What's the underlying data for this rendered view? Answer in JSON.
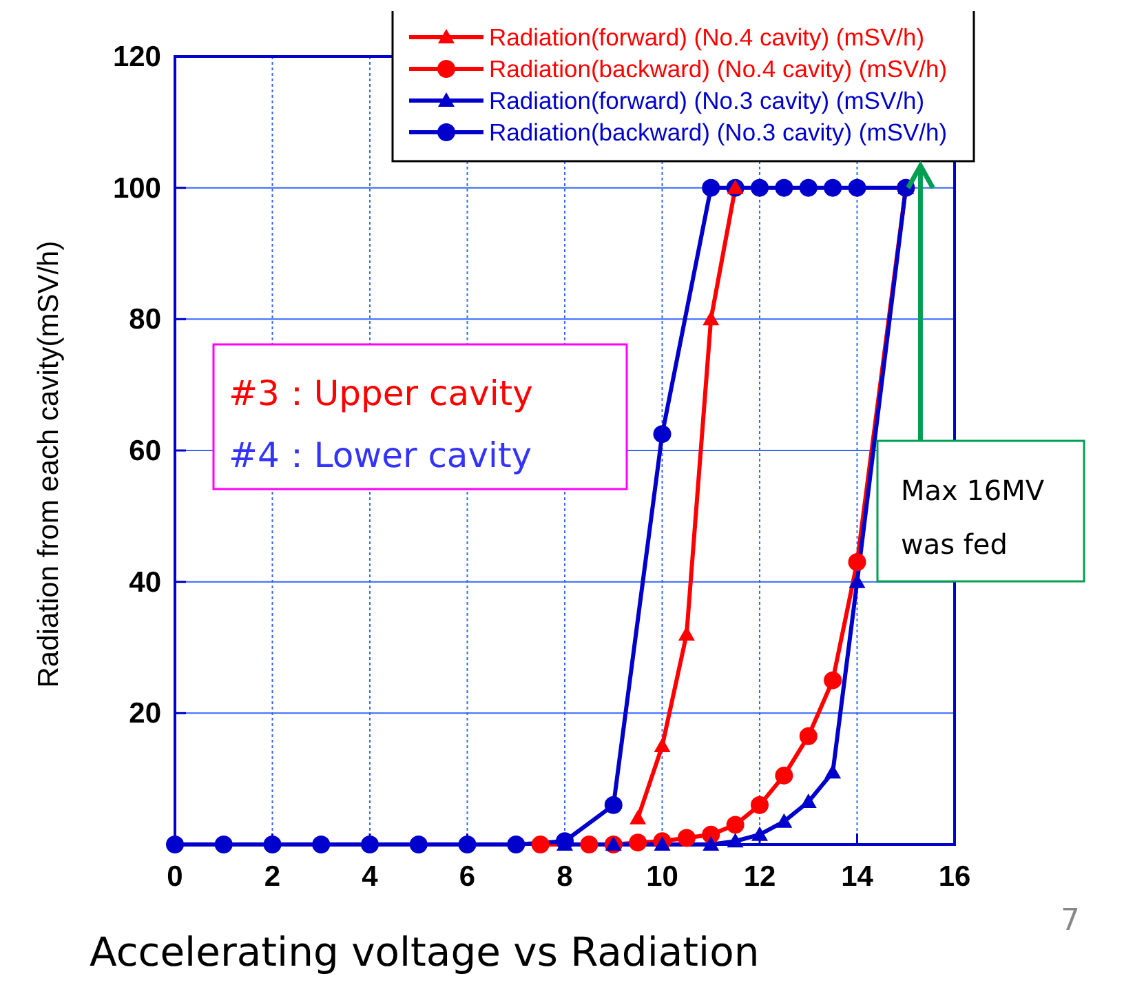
{
  "chart_data": {
    "type": "line",
    "title": "Accelerating voltage vs Radiation",
    "ylabel": "Radiation from each cavity(mSV/h)",
    "xlim": [
      0,
      16
    ],
    "xticks": [
      0,
      2,
      4,
      6,
      8,
      10,
      12,
      14,
      16
    ],
    "ylim": [
      0,
      120
    ],
    "yticks": [
      {
        "value": 0,
        "label": null
      },
      20,
      40,
      60,
      80,
      100,
      120
    ],
    "grid": true,
    "legend": "top right",
    "line_style": "solid",
    "series": [
      {
        "name": "Radiation(forward) (No.4 cavity) (mSV/h)",
        "color": "#ff0000",
        "marker": "triangle",
        "x": [
          9.5,
          10,
          10.5,
          11,
          11.5
        ],
        "values": [
          4,
          15,
          32,
          80,
          100
        ]
      },
      {
        "name": "Radiation(backward) (No.4 cavity) (mSV/h)",
        "color": "#ff0000",
        "marker": "circle",
        "x": [
          7.5,
          8.5,
          9,
          9.5,
          10,
          10.5,
          11,
          11.5,
          12,
          12.5,
          13,
          13.5,
          14,
          15
        ],
        "values": [
          0,
          0,
          0,
          0.3,
          0.5,
          1,
          1.5,
          3,
          6,
          10.5,
          16.5,
          25,
          43,
          100
        ]
      },
      {
        "name": "Radiation(forward) (No.3 cavity) (mSV/h)",
        "color": "#0000cc",
        "marker": "triangle",
        "x": [
          8,
          9,
          10,
          11,
          11.5,
          12,
          12.5,
          13,
          13.5,
          14,
          15
        ],
        "values": [
          0,
          0,
          0,
          0,
          0.5,
          1.5,
          3.5,
          6.5,
          11,
          40,
          100
        ]
      },
      {
        "name": "Radiation(backward) (No.3 cavity) (mSV/h)",
        "color": "#0000cc",
        "marker": "circle",
        "x": [
          0,
          1,
          2,
          3,
          4,
          5,
          6,
          7,
          8,
          9,
          10,
          11,
          11.5,
          12,
          12.5,
          13,
          13.5,
          14,
          15
        ],
        "values": [
          0,
          0,
          0,
          0,
          0,
          0,
          0,
          0,
          0.5,
          6,
          62.5,
          100,
          100,
          100,
          100,
          100,
          100,
          100,
          100
        ]
      }
    ],
    "annotations": [
      "#3：Upper cavity",
      "#4：Lower cavity",
      "Max 16MV was fed",
      "7"
    ]
  }
}
